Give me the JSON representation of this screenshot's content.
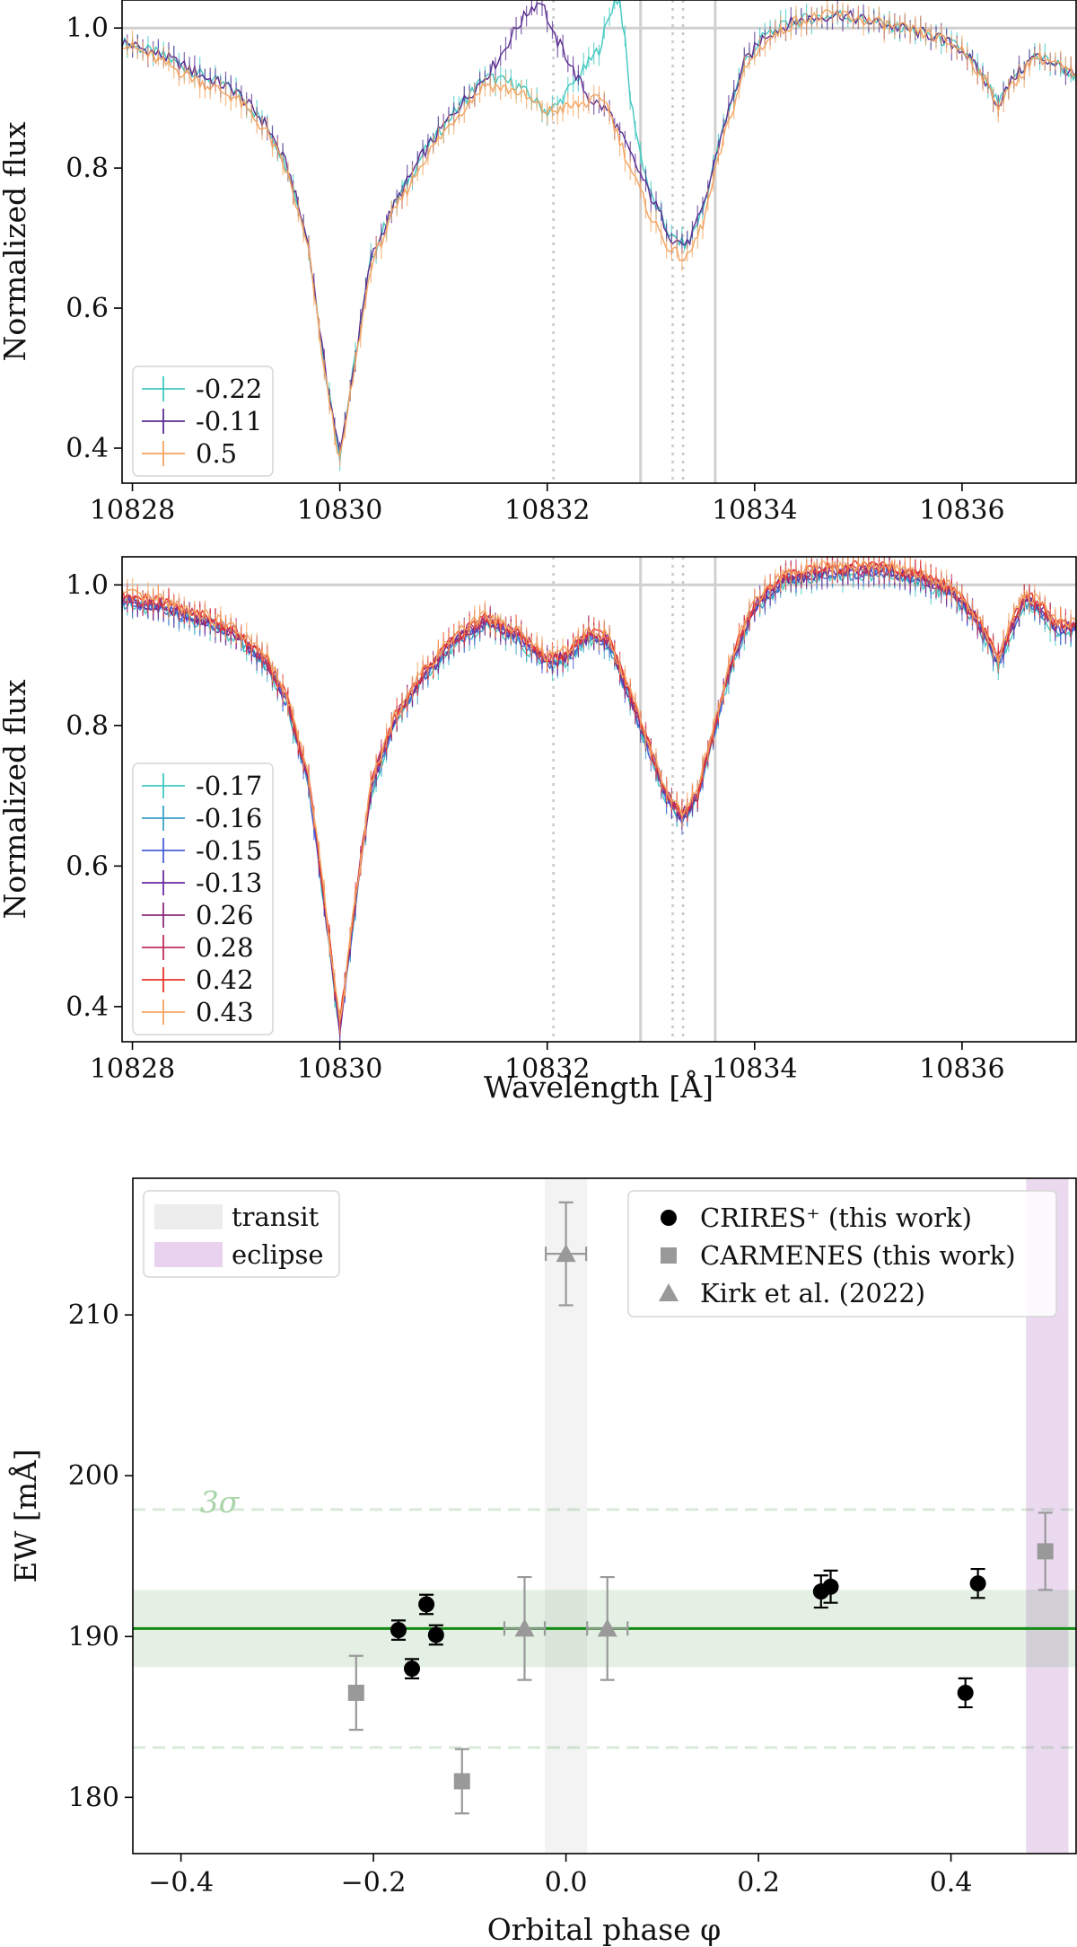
{
  "chart_data": [
    {
      "type": "line",
      "panel": "top",
      "xlabel": "",
      "ylabel": "Normalized flux",
      "xlim": [
        10827.9,
        10837.1
      ],
      "ylim": [
        0.35,
        1.04
      ],
      "xticks": [
        10828,
        10830,
        10832,
        10834,
        10836
      ],
      "yticks": [
        0.4,
        0.6,
        0.8,
        1.0
      ],
      "reference_lines": {
        "horizontal": [
          1.0
        ],
        "solid_vertical": [
          10832.9,
          10833.62
        ],
        "dotted_vertical": [
          10832.06,
          10833.21,
          10833.31
        ]
      },
      "legend_position": "lower-left",
      "series": [
        {
          "name": "-0.22",
          "color": "#40c8c0",
          "x": [
            10827.9,
            10828.3,
            10828.7,
            10829.0,
            10829.3,
            10829.5,
            10829.7,
            10829.85,
            10830.0,
            10830.15,
            10830.3,
            10830.5,
            10830.8,
            10831.1,
            10831.4,
            10831.7,
            10832.0,
            10832.1,
            10832.3,
            10832.5,
            10832.65,
            10832.7,
            10832.75,
            10832.8,
            10832.9,
            10833.0,
            10833.2,
            10833.35,
            10833.5,
            10833.7,
            10833.9,
            10834.1,
            10834.4,
            10834.8,
            10835.1,
            10835.4,
            10835.7,
            10836.0,
            10836.2,
            10836.35,
            10836.5,
            10836.7,
            10836.9,
            10837.1
          ],
          "y": [
            0.98,
            0.96,
            0.93,
            0.91,
            0.86,
            0.8,
            0.69,
            0.52,
            0.39,
            0.53,
            0.67,
            0.74,
            0.82,
            0.88,
            0.93,
            0.92,
            0.88,
            0.89,
            0.93,
            0.97,
            1.04,
            1.04,
            0.98,
            0.9,
            0.82,
            0.76,
            0.7,
            0.69,
            0.74,
            0.86,
            0.95,
            0.99,
            1.01,
            1.02,
            1.01,
            1.0,
            0.99,
            0.97,
            0.93,
            0.89,
            0.93,
            0.96,
            0.95,
            0.93
          ]
        },
        {
          "name": "-0.11",
          "color": "#5a2d91",
          "x": [
            10827.9,
            10828.3,
            10828.7,
            10829.0,
            10829.3,
            10829.5,
            10829.7,
            10829.85,
            10830.0,
            10830.15,
            10830.3,
            10830.5,
            10830.8,
            10831.1,
            10831.4,
            10831.55,
            10831.7,
            10831.85,
            10831.95,
            10832.05,
            10832.15,
            10832.25,
            10832.4,
            10832.6,
            10832.8,
            10833.0,
            10833.2,
            10833.35,
            10833.5,
            10833.7,
            10833.9,
            10834.1,
            10834.4,
            10834.8,
            10835.1,
            10835.4,
            10835.7,
            10836.0,
            10836.2,
            10836.35,
            10836.5,
            10836.7,
            10836.9,
            10837.1
          ],
          "y": [
            0.98,
            0.96,
            0.93,
            0.91,
            0.86,
            0.8,
            0.69,
            0.52,
            0.39,
            0.53,
            0.67,
            0.74,
            0.82,
            0.88,
            0.93,
            0.96,
            1.0,
            1.03,
            1.04,
            0.99,
            0.97,
            0.94,
            0.9,
            0.88,
            0.82,
            0.76,
            0.7,
            0.69,
            0.74,
            0.86,
            0.95,
            0.99,
            1.01,
            1.02,
            1.01,
            1.0,
            0.99,
            0.97,
            0.93,
            0.89,
            0.93,
            0.96,
            0.95,
            0.93
          ]
        },
        {
          "name": "0.5",
          "color": "#f4a460",
          "x": [
            10827.9,
            10828.3,
            10828.7,
            10829.0,
            10829.3,
            10829.5,
            10829.7,
            10829.85,
            10830.0,
            10830.15,
            10830.3,
            10830.5,
            10830.8,
            10831.1,
            10831.4,
            10831.7,
            10832.0,
            10832.3,
            10832.55,
            10832.8,
            10833.0,
            10833.2,
            10833.35,
            10833.5,
            10833.7,
            10833.9,
            10834.1,
            10834.4,
            10834.8,
            10835.1,
            10835.4,
            10835.7,
            10836.0,
            10836.2,
            10836.35,
            10836.5,
            10836.7,
            10836.9,
            10837.1
          ],
          "y": [
            0.98,
            0.95,
            0.92,
            0.9,
            0.85,
            0.79,
            0.68,
            0.51,
            0.38,
            0.52,
            0.66,
            0.73,
            0.81,
            0.87,
            0.92,
            0.91,
            0.88,
            0.89,
            0.9,
            0.8,
            0.73,
            0.68,
            0.67,
            0.72,
            0.84,
            0.94,
            0.98,
            1.01,
            1.02,
            1.01,
            1.0,
            0.99,
            0.97,
            0.93,
            0.89,
            0.92,
            0.96,
            0.95,
            0.93
          ]
        }
      ]
    },
    {
      "type": "line",
      "panel": "middle",
      "xlabel": "Wavelength [Å]",
      "ylabel": "Normalized flux",
      "xlim": [
        10827.9,
        10837.1
      ],
      "ylim": [
        0.35,
        1.04
      ],
      "xticks": [
        10828,
        10830,
        10832,
        10834,
        10836
      ],
      "yticks": [
        0.4,
        0.6,
        0.8,
        1.0
      ],
      "reference_lines": {
        "horizontal": [
          1.0
        ],
        "solid_vertical": [
          10832.9,
          10833.62
        ],
        "dotted_vertical": [
          10832.06,
          10833.21,
          10833.31
        ]
      },
      "legend_position": "lower-left",
      "series": [
        {
          "name": "-0.17",
          "color": "#40c8c0"
        },
        {
          "name": "-0.16",
          "color": "#3aa0c8"
        },
        {
          "name": "-0.15",
          "color": "#4a5fd8"
        },
        {
          "name": "-0.13",
          "color": "#6a2ca0"
        },
        {
          "name": "0.26",
          "color": "#8a2a7a"
        },
        {
          "name": "0.28",
          "color": "#c0305a"
        },
        {
          "name": "0.42",
          "color": "#e8342a"
        },
        {
          "name": "0.43",
          "color": "#f4a460"
        }
      ],
      "profile": {
        "x": [
          10827.9,
          10828.3,
          10828.7,
          10829.0,
          10829.3,
          10829.5,
          10829.7,
          10829.85,
          10830.0,
          10830.15,
          10830.3,
          10830.5,
          10830.8,
          10831.1,
          10831.4,
          10831.7,
          10832.0,
          10832.2,
          10832.4,
          10832.6,
          10832.8,
          10833.0,
          10833.15,
          10833.3,
          10833.45,
          10833.6,
          10833.8,
          10834.0,
          10834.3,
          10834.7,
          10835.0,
          10835.3,
          10835.6,
          10835.9,
          10836.1,
          10836.25,
          10836.35,
          10836.45,
          10836.6,
          10836.75,
          10836.9,
          10837.1
        ],
        "y": [
          0.98,
          0.97,
          0.95,
          0.93,
          0.89,
          0.83,
          0.72,
          0.55,
          0.37,
          0.55,
          0.71,
          0.8,
          0.87,
          0.92,
          0.95,
          0.93,
          0.89,
          0.9,
          0.93,
          0.92,
          0.84,
          0.76,
          0.7,
          0.67,
          0.7,
          0.79,
          0.9,
          0.97,
          1.01,
          1.02,
          1.02,
          1.02,
          1.01,
          0.99,
          0.96,
          0.92,
          0.89,
          0.93,
          0.98,
          0.97,
          0.94,
          0.94
        ]
      }
    },
    {
      "type": "scatter",
      "panel": "bottom",
      "xlabel": "Orbital phase φ",
      "ylabel": "EW [mÅ]",
      "xlim": [
        -0.45,
        0.53
      ],
      "ylim": [
        176.5,
        218.5
      ],
      "xticks": [
        -0.4,
        -0.2,
        0.0,
        0.2,
        0.4
      ],
      "yticks": [
        180,
        190,
        200,
        210
      ],
      "legend_position": "upper-right",
      "mean": 190.5,
      "band": [
        188.1,
        192.9
      ],
      "sigma3": [
        183.1,
        197.9
      ],
      "sigma_label": "3σ",
      "shaded_regions": [
        {
          "name": "transit",
          "x": [
            -0.022,
            0.022
          ],
          "color": "#d8d8d8"
        },
        {
          "name": "eclipse",
          "x": [
            0.478,
            0.522
          ],
          "color": "#d8b4e2"
        }
      ],
      "series": [
        {
          "name": "CRIRES⁺ (this work)",
          "marker": "circle",
          "color": "#000000",
          "x": [
            -0.174,
            -0.16,
            -0.145,
            -0.135,
            0.265,
            0.275,
            0.415,
            0.428
          ],
          "y": [
            190.4,
            188.0,
            192.0,
            190.1,
            192.8,
            193.1,
            186.5,
            193.3
          ],
          "yerr": [
            0.6,
            0.6,
            0.6,
            0.6,
            1.0,
            1.0,
            0.9,
            0.9
          ]
        },
        {
          "name": "CARMENES (this work)",
          "marker": "square",
          "color": "#999999",
          "x": [
            -0.218,
            -0.108,
            0.498
          ],
          "y": [
            186.5,
            181.0,
            195.3
          ],
          "yerr": [
            2.3,
            2.0,
            2.4
          ]
        },
        {
          "name": "Kirk et al. (2022)",
          "marker": "triangle",
          "color": "#999999",
          "x": [
            -0.043,
            0.0,
            0.043
          ],
          "y": [
            190.5,
            213.8,
            190.5
          ],
          "yerr": [
            3.2,
            3.2,
            3.2
          ],
          "xerr": [
            0.021,
            0.021,
            0.021
          ]
        }
      ]
    }
  ]
}
